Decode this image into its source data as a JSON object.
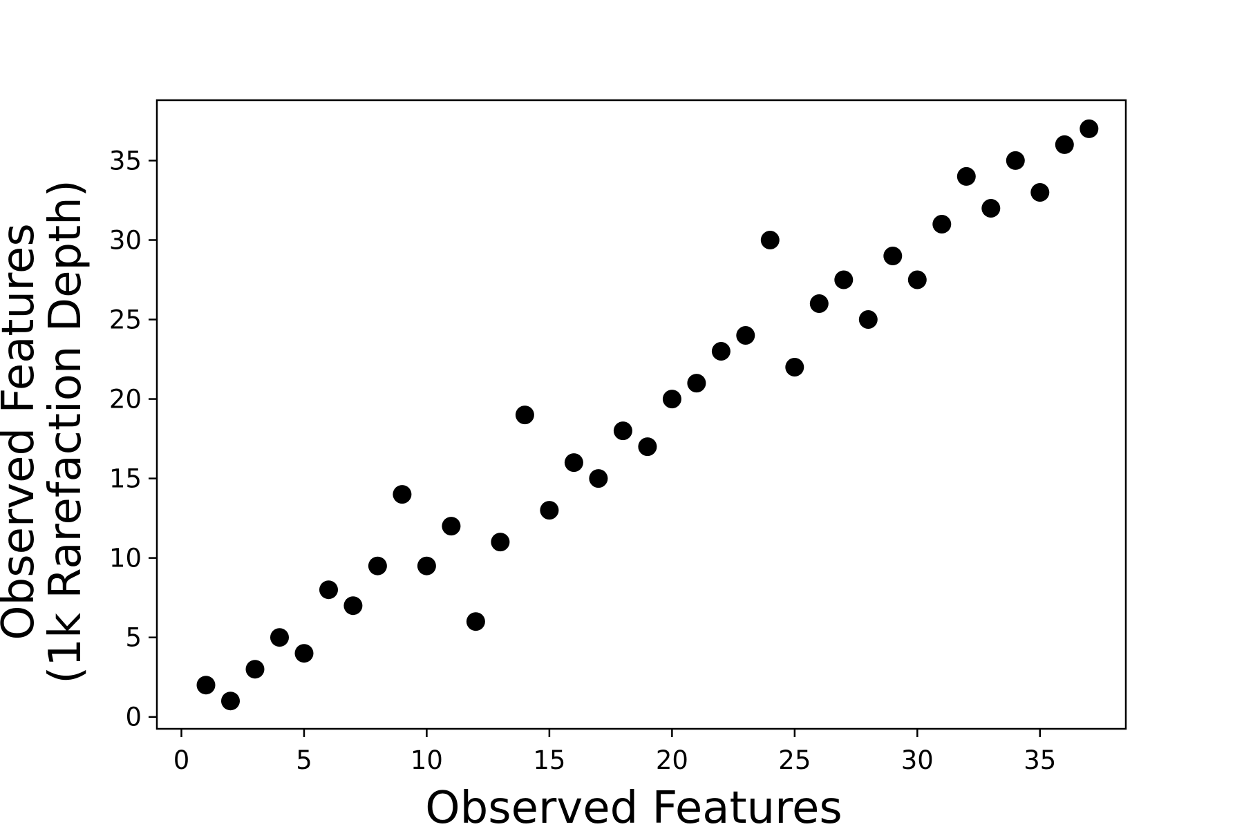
{
  "chart_data": {
    "type": "scatter",
    "title": "",
    "xlabel": "Observed Features",
    "ylabel_lines": [
      "Observed Features",
      "(1k Rarefaction Depth)"
    ],
    "xlim": [
      -1,
      38.5
    ],
    "ylim": [
      -0.75,
      38.8
    ],
    "xticks": [
      0,
      5,
      10,
      15,
      20,
      25,
      30,
      35
    ],
    "yticks": [
      0,
      5,
      10,
      15,
      20,
      25,
      30,
      35
    ],
    "grid": false,
    "legend": "none",
    "marker_color": "#000000",
    "points": [
      {
        "x": 1,
        "y": 2
      },
      {
        "x": 2,
        "y": 1
      },
      {
        "x": 3,
        "y": 3
      },
      {
        "x": 4,
        "y": 5
      },
      {
        "x": 5,
        "y": 4
      },
      {
        "x": 6,
        "y": 8
      },
      {
        "x": 7,
        "y": 7
      },
      {
        "x": 8,
        "y": 9.5
      },
      {
        "x": 9,
        "y": 14
      },
      {
        "x": 10,
        "y": 9.5
      },
      {
        "x": 11,
        "y": 12
      },
      {
        "x": 12,
        "y": 6
      },
      {
        "x": 13,
        "y": 11
      },
      {
        "x": 14,
        "y": 19
      },
      {
        "x": 15,
        "y": 13
      },
      {
        "x": 16,
        "y": 16
      },
      {
        "x": 17,
        "y": 15
      },
      {
        "x": 18,
        "y": 18
      },
      {
        "x": 19,
        "y": 17
      },
      {
        "x": 20,
        "y": 20
      },
      {
        "x": 21,
        "y": 21
      },
      {
        "x": 22,
        "y": 23
      },
      {
        "x": 23,
        "y": 24
      },
      {
        "x": 24,
        "y": 30
      },
      {
        "x": 25,
        "y": 22
      },
      {
        "x": 26,
        "y": 26
      },
      {
        "x": 27,
        "y": 27.5
      },
      {
        "x": 28,
        "y": 25
      },
      {
        "x": 29,
        "y": 29
      },
      {
        "x": 30,
        "y": 27.5
      },
      {
        "x": 31,
        "y": 31
      },
      {
        "x": 32,
        "y": 34
      },
      {
        "x": 33,
        "y": 32
      },
      {
        "x": 34,
        "y": 35
      },
      {
        "x": 35,
        "y": 33
      },
      {
        "x": 36,
        "y": 36
      },
      {
        "x": 37,
        "y": 37
      }
    ]
  }
}
